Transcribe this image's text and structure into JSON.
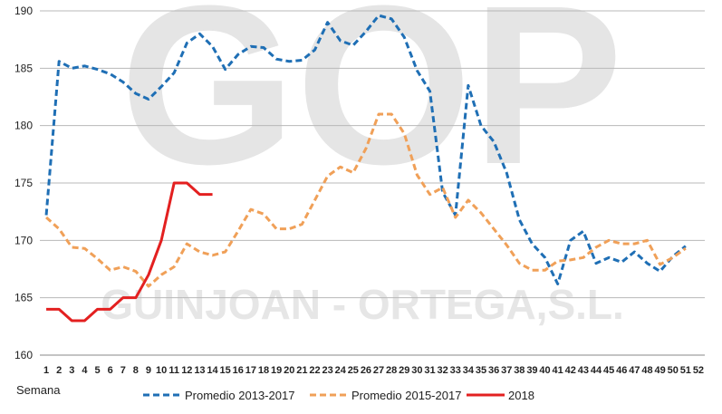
{
  "chart_data": {
    "type": "line",
    "title": "",
    "xlabel": "Semana",
    "ylabel": "",
    "ylim": [
      160,
      190
    ],
    "yticks": [
      160,
      165,
      170,
      175,
      180,
      185,
      190
    ],
    "x": [
      1,
      2,
      3,
      4,
      5,
      6,
      7,
      8,
      9,
      10,
      11,
      12,
      13,
      14,
      15,
      16,
      17,
      18,
      19,
      20,
      21,
      22,
      23,
      24,
      25,
      26,
      27,
      28,
      29,
      30,
      31,
      32,
      33,
      34,
      35,
      36,
      37,
      38,
      39,
      40,
      41,
      42,
      43,
      44,
      45,
      46,
      47,
      48,
      49,
      50,
      51,
      52
    ],
    "grid": true,
    "legend": "bottom",
    "series": [
      {
        "name": "Promedio 2013-2017",
        "color": "#1f6fb5",
        "dash": "dashed",
        "values": [
          172.2,
          185.6,
          185.0,
          185.2,
          184.9,
          184.5,
          183.8,
          182.8,
          182.3,
          183.4,
          184.6,
          187.2,
          188.0,
          186.9,
          184.9,
          186.2,
          186.9,
          186.8,
          185.8,
          185.6,
          185.7,
          186.6,
          189.0,
          187.4,
          187.0,
          188.2,
          189.6,
          189.3,
          187.7,
          184.8,
          183.0,
          174.2,
          172.2,
          183.5,
          180.0,
          178.6,
          175.9,
          171.8,
          169.7,
          168.5,
          166.2,
          170.0,
          170.8,
          168.0,
          168.5,
          168.1,
          169.0,
          168.0,
          167.3,
          168.6,
          169.5,
          null
        ]
      },
      {
        "name": "Promedio 2015-2017",
        "color": "#f0a058",
        "dash": "dashed",
        "values": [
          172.0,
          171.0,
          169.4,
          169.3,
          168.4,
          167.4,
          167.7,
          167.3,
          166.0,
          167.0,
          167.7,
          169.7,
          169.0,
          168.7,
          169.0,
          170.8,
          172.7,
          172.3,
          171.0,
          171.0,
          171.4,
          173.5,
          175.6,
          176.4,
          175.9,
          178.0,
          181.0,
          181.0,
          179.3,
          175.7,
          174.0,
          174.6,
          172.0,
          173.5,
          172.4,
          171.0,
          169.6,
          168.0,
          167.4,
          167.4,
          168.2,
          168.3,
          168.5,
          169.4,
          170.0,
          169.7,
          169.7,
          170.0,
          167.9,
          168.5,
          169.3,
          null
        ]
      },
      {
        "name": "2018",
        "color": "#e32020",
        "dash": "solid",
        "values": [
          164,
          164,
          163,
          163,
          164,
          164,
          165,
          165,
          167,
          170,
          175,
          175,
          174,
          174,
          null,
          null,
          null,
          null,
          null,
          null,
          null,
          null,
          null,
          null,
          null,
          null,
          null,
          null,
          null,
          null,
          null,
          null,
          null,
          null,
          null,
          null,
          null,
          null,
          null,
          null,
          null,
          null,
          null,
          null,
          null,
          null,
          null,
          null,
          null,
          null,
          null,
          null
        ]
      }
    ]
  },
  "watermark": {
    "logo_text": "GOP",
    "company_text": "GUINJOAN - ORTEGA,S.L."
  }
}
